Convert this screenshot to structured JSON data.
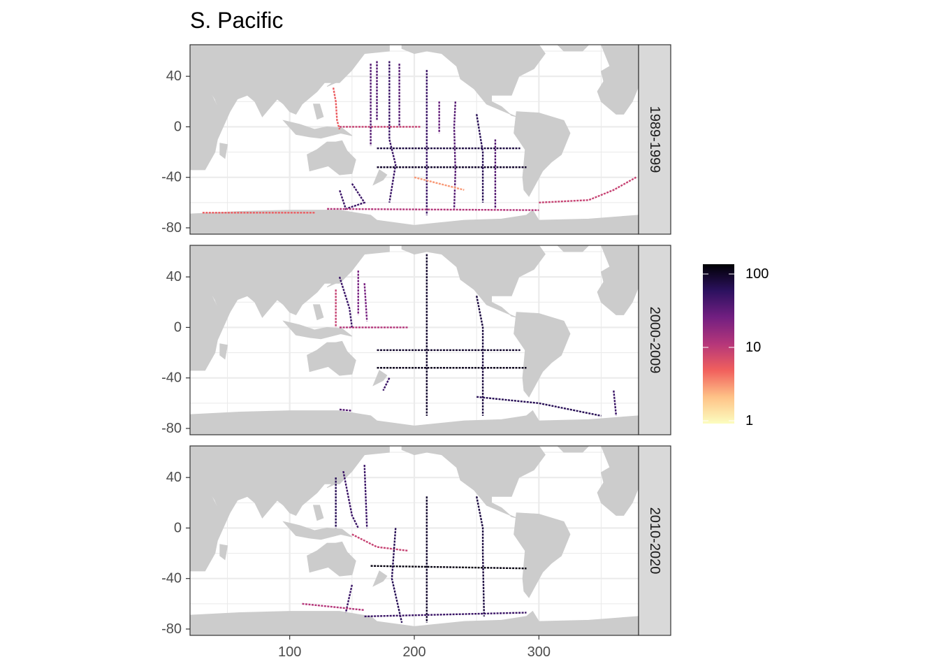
{
  "chart_data": {
    "type": "heatmap",
    "title": "S. Pacific",
    "xlabel": "",
    "ylabel": "",
    "xlim": [
      20,
      380
    ],
    "ylim": [
      -85,
      65
    ],
    "x_ticks": [
      100,
      200,
      300
    ],
    "y_ticks": [
      40,
      0,
      -40,
      -80
    ],
    "x_tick_labels": [
      "100",
      "200",
      "300"
    ],
    "y_tick_labels": [
      "40",
      "0",
      "-40",
      "-80"
    ],
    "grid": true,
    "color_scale": {
      "type": "log",
      "palette": "magma (reversed)",
      "ticks": [
        1,
        10,
        100
      ],
      "tick_labels": [
        "1",
        "10",
        "100"
      ],
      "colors": [
        "#fcfdbf",
        "#fec287",
        "#f1605d",
        "#b5367a",
        "#721f81",
        "#2c115f",
        "#000004"
      ],
      "legend_position": "right"
    },
    "panels": [
      {
        "label": "1989-1999",
        "tracks": [
          {
            "value": 5,
            "points": [
              [
                135,
                31
              ],
              [
                137,
                20
              ],
              [
                138,
                5
              ],
              [
                140,
                -2
              ]
            ]
          },
          {
            "value": 8,
            "points": [
              [
                140,
                0
              ],
              [
                205,
                0
              ]
            ]
          },
          {
            "value": 30,
            "points": [
              [
                165,
                50
              ],
              [
                165,
                0
              ],
              [
                165,
                -15
              ]
            ]
          },
          {
            "value": 30,
            "points": [
              [
                170,
                52
              ],
              [
                170,
                5
              ]
            ]
          },
          {
            "value": 40,
            "points": [
              [
                180,
                52
              ],
              [
                180,
                -10
              ],
              [
                185,
                -30
              ],
              [
                180,
                -60
              ]
            ]
          },
          {
            "value": 30,
            "points": [
              [
                188,
                50
              ],
              [
                188,
                0
              ]
            ]
          },
          {
            "value": 40,
            "points": [
              [
                210,
                45
              ],
              [
                210,
                -40
              ],
              [
                210,
                -70
              ]
            ]
          },
          {
            "value": 25,
            "points": [
              [
                220,
                20
              ],
              [
                220,
                -5
              ]
            ]
          },
          {
            "value": 30,
            "points": [
              [
                233,
                20
              ],
              [
                232,
                0
              ],
              [
                233,
                -35
              ],
              [
                232,
                -65
              ]
            ]
          },
          {
            "value": 60,
            "points": [
              [
                170,
                -17
              ],
              [
                285,
                -17
              ]
            ]
          },
          {
            "value": 70,
            "points": [
              [
                170,
                -32
              ],
              [
                290,
                -32
              ]
            ]
          },
          {
            "value": 50,
            "points": [
              [
                250,
                10
              ],
              [
                255,
                -20
              ],
              [
                255,
                -60
              ]
            ]
          },
          {
            "value": 30,
            "points": [
              [
                265,
                -10
              ],
              [
                265,
                -65
              ]
            ]
          },
          {
            "value": 40,
            "points": [
              [
                150,
                -45
              ],
              [
                160,
                -60
              ],
              [
                145,
                -65
              ],
              [
                140,
                -50
              ]
            ]
          },
          {
            "value": 5,
            "points": [
              [
                30,
                -68
              ],
              [
                120,
                -68
              ]
            ]
          },
          {
            "value": 10,
            "points": [
              [
                130,
                -65
              ],
              [
                300,
                -66
              ]
            ]
          },
          {
            "value": 8,
            "points": [
              [
                300,
                -60
              ],
              [
                340,
                -58
              ],
              [
                360,
                -50
              ],
              [
                378,
                -40
              ]
            ]
          },
          {
            "value": 3,
            "points": [
              [
                200,
                -40
              ],
              [
                240,
                -50
              ]
            ]
          }
        ]
      },
      {
        "label": "2000-2009",
        "tracks": [
          {
            "value": 8,
            "points": [
              [
                137,
                30
              ],
              [
                137,
                0
              ]
            ]
          },
          {
            "value": 40,
            "points": [
              [
                140,
                40
              ],
              [
                148,
                15
              ],
              [
                150,
                0
              ]
            ]
          },
          {
            "value": 20,
            "points": [
              [
                155,
                45
              ],
              [
                155,
                10
              ]
            ]
          },
          {
            "value": 20,
            "points": [
              [
                160,
                35
              ],
              [
                162,
                5
              ]
            ]
          },
          {
            "value": 10,
            "points": [
              [
                140,
                0
              ],
              [
                195,
                0
              ]
            ]
          },
          {
            "value": 70,
            "points": [
              [
                210,
                58
              ],
              [
                210,
                -70
              ]
            ]
          },
          {
            "value": 70,
            "points": [
              [
                170,
                -18
              ],
              [
                285,
                -18
              ]
            ]
          },
          {
            "value": 80,
            "points": [
              [
                170,
                -32
              ],
              [
                290,
                -32
              ]
            ]
          },
          {
            "value": 60,
            "points": [
              [
                250,
                25
              ],
              [
                255,
                0
              ],
              [
                255,
                -40
              ],
              [
                255,
                -70
              ]
            ]
          },
          {
            "value": 40,
            "points": [
              [
                180,
                -40
              ],
              [
                175,
                -50
              ]
            ]
          },
          {
            "value": 50,
            "points": [
              [
                250,
                -55
              ],
              [
                300,
                -60
              ],
              [
                350,
                -70
              ]
            ]
          },
          {
            "value": 40,
            "points": [
              [
                360,
                -50
              ],
              [
                362,
                -70
              ]
            ]
          },
          {
            "value": 30,
            "points": [
              [
                140,
                -65
              ],
              [
                150,
                -66
              ]
            ]
          }
        ]
      },
      {
        "label": "2010-2020",
        "tracks": [
          {
            "value": 50,
            "points": [
              [
                137,
                40
              ],
              [
                137,
                0
              ]
            ]
          },
          {
            "value": 40,
            "points": [
              [
                143,
                45
              ],
              [
                150,
                10
              ],
              [
                155,
                0
              ]
            ]
          },
          {
            "value": 40,
            "points": [
              [
                160,
                50
              ],
              [
                162,
                0
              ]
            ]
          },
          {
            "value": 8,
            "points": [
              [
                150,
                -5
              ],
              [
                170,
                -15
              ],
              [
                195,
                -18
              ]
            ]
          },
          {
            "value": 70,
            "points": [
              [
                210,
                25
              ],
              [
                210,
                -75
              ]
            ]
          },
          {
            "value": 90,
            "points": [
              [
                165,
                -30
              ],
              [
                290,
                -32
              ]
            ]
          },
          {
            "value": 60,
            "points": [
              [
                250,
                25
              ],
              [
                255,
                0
              ],
              [
                255,
                -20
              ],
              [
                256,
                -70
              ]
            ]
          },
          {
            "value": 50,
            "points": [
              [
                185,
                0
              ],
              [
                182,
                -40
              ],
              [
                190,
                -75
              ]
            ]
          },
          {
            "value": 40,
            "points": [
              [
                150,
                -45
              ],
              [
                145,
                -67
              ]
            ]
          },
          {
            "value": 40,
            "points": [
              [
                160,
                -70
              ],
              [
                290,
                -67
              ]
            ]
          },
          {
            "value": 10,
            "points": [
              [
                110,
                -60
              ],
              [
                160,
                -65
              ]
            ]
          }
        ]
      }
    ]
  }
}
